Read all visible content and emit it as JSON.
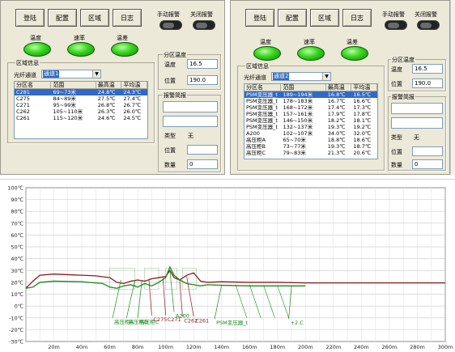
{
  "left": {
    "buttons": [
      "登陆",
      "配置",
      "区域",
      "日志"
    ],
    "manual_alarm": "手动报警",
    "close_alarm": "关闭报警",
    "leds": [
      "温度",
      "速率",
      "温差"
    ],
    "zone_info_title": "区域信息",
    "channel_label": "光纤通道",
    "channel_value": "通道1",
    "columns": [
      "分区名",
      "范围",
      "最高温",
      "平均温"
    ],
    "rows": [
      [
        "C281",
        "69~73米",
        "24.8℃",
        "24.3℃"
      ],
      [
        "C275",
        "84~89米",
        "27.5℃",
        "27.4℃"
      ],
      [
        "C271",
        "95~99米",
        "26.8℃",
        "26.7℃"
      ],
      [
        "C262",
        "105~110米",
        "26.3℃",
        "26.0℃"
      ],
      [
        "C261",
        "115~120米",
        "24.6℃",
        "24.5℃"
      ]
    ],
    "selected_row": 0,
    "zone_temp_title": "分区温度",
    "temp_label": "温度",
    "temp_value": "16.5",
    "pos_label": "位置",
    "pos_value": "190.0",
    "alarm_title": "报警简报",
    "type_label": "类型",
    "type_value": "无",
    "pos2_label": "位置",
    "pos2_value": "",
    "count_label": "数量",
    "count_value": "0"
  },
  "right": {
    "buttons": [
      "登陆",
      "配置",
      "区域",
      "日志"
    ],
    "manual_alarm": "手动报警",
    "close_alarm": "关闭报警",
    "leds": [
      "温度",
      "速率",
      "温差"
    ],
    "zone_info_title": "区域信息",
    "channel_label": "光纤通道",
    "channel_value": "通道2",
    "columns": [
      "分区名",
      "范围",
      "最高温",
      "平均温"
    ],
    "rows": [
      [
        "PSM变压器_t",
        "189~194米",
        "16.8℃",
        "16.5℃"
      ],
      [
        "PSM变压器_t",
        "178~183米",
        "16.7℃",
        "16.6℃"
      ],
      [
        "PSM变压器_t",
        "168~172米",
        "17.4℃",
        "17.3℃"
      ],
      [
        "PSM变压器_t",
        "157~161米",
        "17.9℃",
        "17.8℃"
      ],
      [
        "PSM变压器_t",
        "146~150米",
        "18.2℃",
        "18.1℃"
      ],
      [
        "PSM变压器_t",
        "132~137米",
        "19.3℃",
        "19.2℃"
      ],
      [
        "A200",
        "102~107米",
        "34.0℃",
        "32.0℃"
      ],
      [
        "高压柜A",
        "65~70米",
        "18.8℃",
        "18.6℃"
      ],
      [
        "高压柜B",
        "73~77米",
        "19.3℃",
        "18.7℃"
      ],
      [
        "高压柜C",
        "79~83米",
        "21.3℃",
        "20.6℃"
      ]
    ],
    "selected_row": 0,
    "zone_temp_title": "分区温度",
    "temp_label": "温度",
    "temp_value": "16.5",
    "pos_label": "位置",
    "pos_value": "190.0",
    "alarm_title": "报警简报",
    "type_label": "类型",
    "type_value": "无",
    "pos2_label": "位置",
    "pos2_value": "",
    "count_label": "数量",
    "count_value": "0"
  },
  "chart_data": {
    "type": "line",
    "title": "",
    "xlabel": "",
    "ylabel": "",
    "x_ticks": [
      "20m",
      "40m",
      "60m",
      "80m",
      "100m",
      "120m",
      "140m",
      "160m",
      "180m",
      "200m",
      "220m",
      "240m",
      "260m",
      "280m",
      "300m"
    ],
    "y_ticks": [
      "100℃",
      "90℃",
      "80℃",
      "70℃",
      "60℃",
      "50℃",
      "40℃",
      "30℃",
      "20℃",
      "10℃",
      "0℃",
      "-10℃",
      "-20℃",
      "-30℃"
    ],
    "xlim": [
      0,
      300
    ],
    "ylim": [
      -30,
      100
    ],
    "grid": true,
    "series": [
      {
        "color": "#8b1a1a",
        "x": [
          0,
          5,
          10,
          20,
          30,
          40,
          50,
          60,
          65,
          70,
          75,
          80,
          85,
          90,
          95,
          100,
          103,
          106,
          110,
          115,
          120,
          125,
          130,
          140,
          160,
          180,
          200,
          240,
          280,
          300
        ],
        "y": [
          15,
          21,
          26,
          27,
          26.5,
          26,
          25.5,
          24,
          20,
          19,
          21,
          22,
          21,
          23,
          24,
          25,
          30,
          24,
          22,
          26,
          28,
          21,
          20,
          20.5,
          20,
          20,
          19.5,
          19.5,
          19.5,
          19.5
        ]
      },
      {
        "color": "#1a8a1a",
        "x": [
          0,
          5,
          10,
          20,
          40,
          55,
          60,
          65,
          70,
          75,
          80,
          85,
          90,
          95,
          100,
          103,
          106,
          110,
          115,
          120,
          125,
          130,
          140,
          160,
          180,
          200
        ],
        "y": [
          15,
          16,
          20,
          21,
          20.5,
          19,
          16,
          15,
          17,
          18,
          16,
          19,
          17,
          20,
          24,
          33,
          26,
          22,
          19,
          18,
          17,
          18,
          17.5,
          17,
          17,
          17
        ]
      }
    ],
    "annotations": [
      "高压柜A",
      "高压柜B",
      "高压柜C",
      "C275",
      "C271",
      "A200",
      "C262",
      "C261",
      "PSM变压器_t",
      "+2.C"
    ]
  }
}
